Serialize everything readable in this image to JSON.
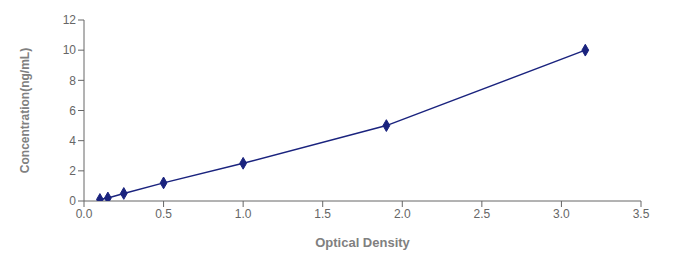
{
  "chart_data": {
    "type": "line",
    "x": [
      0.1,
      0.15,
      0.25,
      0.5,
      1.0,
      1.9,
      3.15
    ],
    "values": [
      0.1,
      0.2,
      0.5,
      1.2,
      2.5,
      5.0,
      10.0
    ],
    "color": "#1a237e",
    "marker": "diamond",
    "xlabel": "Optical Density",
    "ylabel": "Concentration(ng/mL)",
    "xlim": [
      0,
      3.5
    ],
    "ylim": [
      0,
      12
    ],
    "xticks": [
      {
        "value": 0,
        "label": "0.0"
      },
      0.5,
      {
        "value": 1.0,
        "label": "1.0"
      },
      1.5,
      {
        "value": 2.0,
        "label": "2.0"
      },
      2.5,
      {
        "value": 3.0,
        "label": "3.0"
      },
      3.5
    ],
    "yticks": [
      0,
      2,
      4,
      6,
      8,
      10,
      12
    ]
  }
}
